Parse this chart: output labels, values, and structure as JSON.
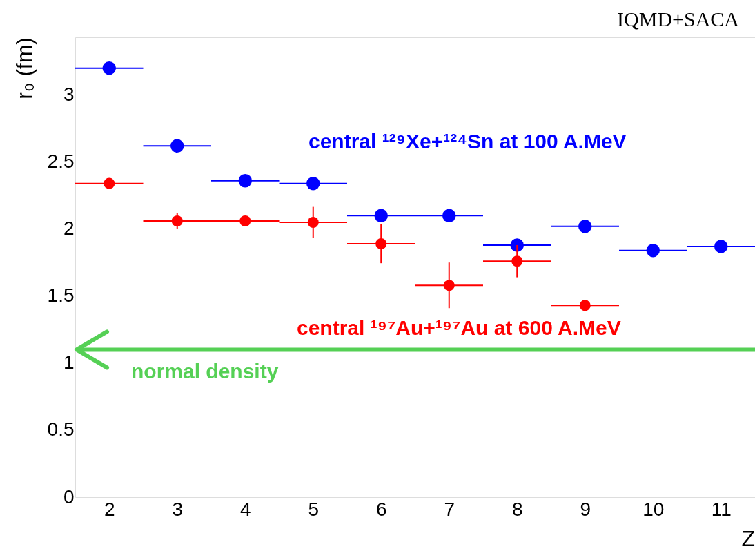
{
  "chart_data": {
    "type": "scatter",
    "title": "IQMD+SACA",
    "xlabel": "Z",
    "ylabel": "r₀ (fm)",
    "xlim": [
      1.5,
      11.5
    ],
    "ylim": [
      0,
      3.43
    ],
    "xticks": [
      2,
      3,
      4,
      5,
      6,
      7,
      8,
      9,
      10,
      11
    ],
    "yticks": [
      0,
      0.5,
      1,
      1.5,
      2,
      2.5,
      3
    ],
    "grid": false,
    "marker": "circle",
    "series": [
      {
        "name": "central ¹²⁹Xe+¹²⁴Sn at 100 A.MeV",
        "color": "#0000ff",
        "x": [
          2,
          3,
          4,
          5,
          6,
          7,
          8,
          9,
          10,
          11
        ],
        "values": [
          3.2,
          2.62,
          2.36,
          2.34,
          2.1,
          2.1,
          1.88,
          2.02,
          1.84,
          1.87
        ],
        "xerrors": [
          0.5,
          0.5,
          0.5,
          0.5,
          0.5,
          0.5,
          0.5,
          0.5,
          0.5,
          0.5
        ]
      },
      {
        "name": "central ¹⁹⁷Au+¹⁹⁷Au at 600 A.MeV",
        "color": "#ff0000",
        "x": [
          2,
          3,
          4,
          5,
          6,
          7,
          8,
          9
        ],
        "values": [
          2.34,
          2.06,
          2.06,
          2.05,
          1.89,
          1.58,
          1.76,
          1.43
        ],
        "xerrors": [
          0.5,
          0.5,
          0.5,
          0.5,
          0.5,
          0.5,
          0.5,
          0.5
        ],
        "errors": [
          null,
          0.06,
          null,
          0.115,
          0.145,
          0.17,
          0.12,
          null
        ]
      }
    ],
    "ref_lines": [
      {
        "axis": "y",
        "value": 1.1,
        "label": "normal density",
        "color": "#55d055"
      }
    ]
  }
}
